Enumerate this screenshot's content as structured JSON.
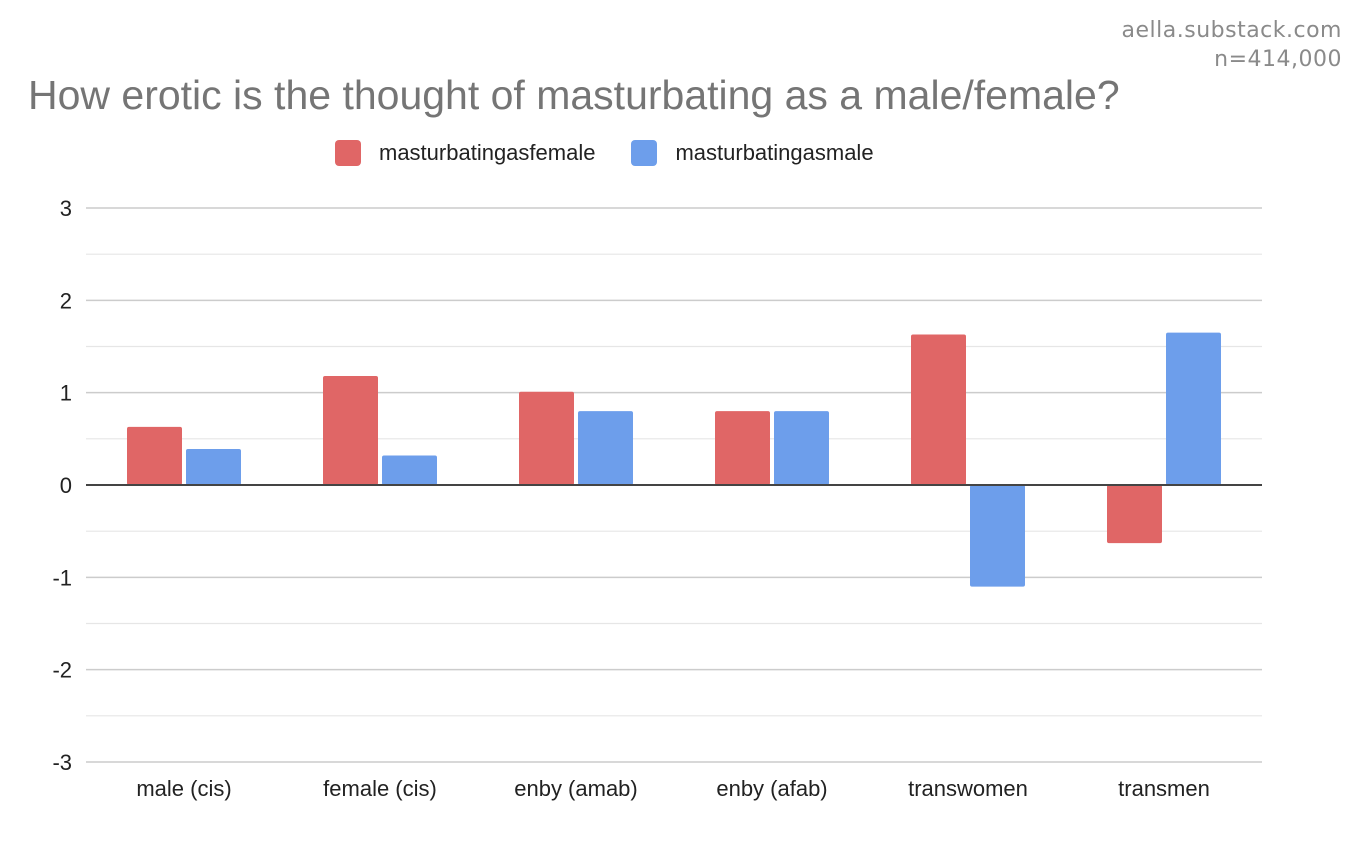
{
  "watermark": {
    "site": "aella.substack.com",
    "sample": "n=414,000"
  },
  "chart_data": {
    "type": "bar",
    "title": "How erotic is the thought of masturbating as a male/female?",
    "xlabel": "",
    "ylabel": "",
    "categories": [
      "male (cis)",
      "female (cis)",
      "enby (amab)",
      "enby (afab)",
      "transwomen",
      "transmen"
    ],
    "series": [
      {
        "name": "masturbatingasfemale",
        "color": "#e06666",
        "values": [
          0.63,
          1.18,
          1.01,
          0.8,
          1.63,
          -0.63
        ]
      },
      {
        "name": "masturbatingasmale",
        "color": "#6d9eeb",
        "values": [
          0.39,
          0.32,
          0.8,
          0.8,
          -1.1,
          1.65
        ]
      }
    ],
    "ylim": [
      -3,
      3
    ],
    "yticks": [
      "3",
      "2",
      "1",
      "0",
      "-1",
      "-2",
      "-3"
    ],
    "ytick_values": [
      3,
      2,
      1,
      0,
      -1,
      -2,
      -3
    ],
    "grid": true,
    "legend_position": "top"
  }
}
